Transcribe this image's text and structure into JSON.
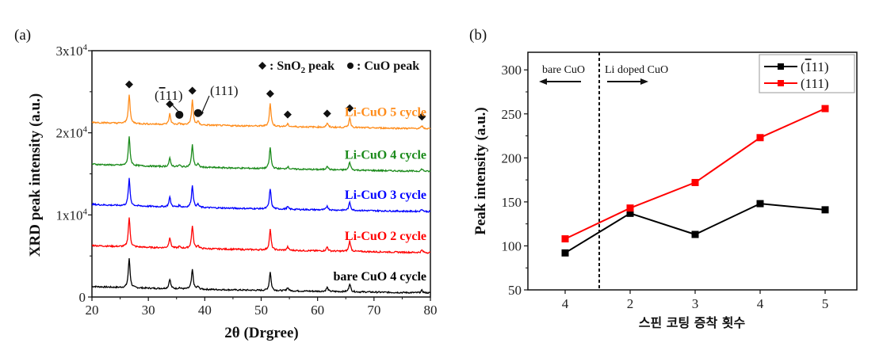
{
  "chart_data": [
    {
      "panel": "(a)",
      "type": "line",
      "title": "",
      "xlabel": "2θ (Drgree)",
      "ylabel": "XRD peak intensity (a.u.)",
      "xlim": [
        20,
        80
      ],
      "ylim": [
        0,
        30000
      ],
      "xticks": [
        20,
        30,
        40,
        50,
        60,
        70,
        80
      ],
      "yticks": [
        {
          "value": 0,
          "label": "0"
        },
        {
          "value": 10000,
          "label": "1x10",
          "exp": "4"
        },
        {
          "value": 20000,
          "label": "2x10",
          "exp": "4"
        },
        {
          "value": 30000,
          "label": "3x10",
          "exp": "4"
        }
      ],
      "grid": false,
      "legend_text": {
        "sno2": ": SnO",
        "sno2_sub": "2",
        "sno2_tail": " peak",
        "cuo": ": CuO peak"
      },
      "peaks_2theta": [
        26.6,
        33.8,
        35.5,
        37.8,
        38.8,
        51.6,
        54.7,
        61.7,
        65.7,
        78.5
      ],
      "series": [
        {
          "name": "bare CuO 4 cycle",
          "color": "#000000",
          "baseline_start": 1300,
          "baseline_end": 500,
          "peak_heights": [
            3600,
            1200,
            150,
            2400,
            300,
            2300,
            400,
            500,
            1000,
            300
          ]
        },
        {
          "name": "Li-CuO 2 cycle",
          "color": "#ff0000",
          "baseline_start": 6300,
          "baseline_end": 5400,
          "peak_heights": [
            3600,
            1300,
            200,
            2800,
            350,
            2500,
            400,
            500,
            1300,
            300
          ]
        },
        {
          "name": "Li-CuO 3 cycle",
          "color": "#0000ff",
          "baseline_start": 11300,
          "baseline_end": 10400,
          "peak_heights": [
            3300,
            1200,
            200,
            2700,
            350,
            2500,
            300,
            500,
            1000,
            300
          ]
        },
        {
          "name": "Li-CuO 4 cycle",
          "color": "#1a8a1a",
          "baseline_start": 16200,
          "baseline_end": 15300,
          "peak_heights": [
            3500,
            1000,
            200,
            2700,
            350,
            2600,
            300,
            500,
            1000,
            300
          ]
        },
        {
          "name": "Li-CuO 5 cycle",
          "color": "#ff8c1a",
          "baseline_start": 21300,
          "baseline_end": 20500,
          "peak_heights": [
            3600,
            1300,
            200,
            3000,
            400,
            2800,
            300,
            500,
            1200,
            300
          ]
        }
      ],
      "markers": {
        "sno2_diamonds": [
          26.6,
          33.8,
          37.8,
          51.6,
          54.7,
          61.7,
          65.7,
          78.5
        ],
        "cuo_circles": [
          35.5,
          38.8
        ]
      },
      "annotations": [
        {
          "text": "(",
          "bar": "1",
          "rest": "11)",
          "target": 35.5
        },
        {
          "text": "(111)",
          "target": 38.8
        }
      ]
    },
    {
      "panel": "(b)",
      "type": "line",
      "title": "",
      "xlabel": "스핀 코팅 증착 횟수",
      "ylabel": "Peak intensity (a.u.)",
      "categories": [
        "4",
        "2",
        "3",
        "4",
        "5"
      ],
      "ylim": [
        50,
        320
      ],
      "yticks": [
        50,
        100,
        150,
        200,
        250,
        300
      ],
      "grid": false,
      "legend_position": "top-right",
      "region_labels": {
        "left": "bare CuO",
        "right": "Li doped CuO"
      },
      "series": [
        {
          "name": "(111)",
          "name_bar": "1",
          "name_prefix": "(",
          "name_rest": "11)",
          "color": "#000000",
          "values": [
            92,
            137,
            113,
            148,
            141
          ]
        },
        {
          "name": "(111)",
          "color": "#ff0000",
          "values": [
            108,
            143,
            172,
            223,
            256
          ]
        }
      ]
    }
  ]
}
